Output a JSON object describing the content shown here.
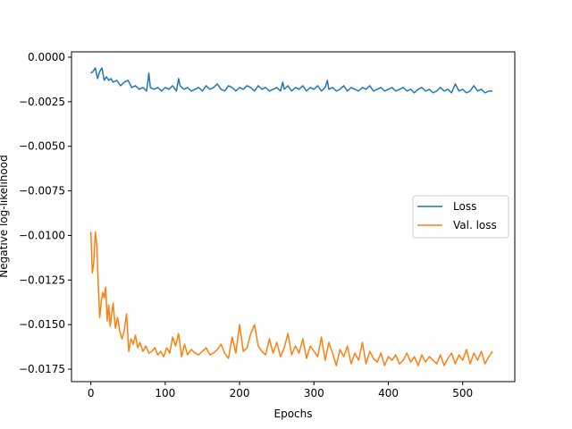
{
  "chart_data": {
    "type": "line",
    "xlabel": "Epochs",
    "ylabel": "Negative log-likelihood",
    "xlim": [
      -26,
      570
    ],
    "ylim": [
      -0.0182,
      0.0003
    ],
    "xticks": [
      0,
      100,
      200,
      300,
      400,
      500
    ],
    "xtick_labels": [
      "0",
      "100",
      "200",
      "300",
      "400",
      "500"
    ],
    "yticks": [
      0.0,
      -0.0025,
      -0.005,
      -0.0075,
      -0.01,
      -0.0125,
      -0.015,
      -0.0175
    ],
    "ytick_labels": [
      "0.0000",
      "−0.0025",
      "−0.0050",
      "−0.0075",
      "−0.0100",
      "−0.0125",
      "−0.0150",
      "−0.0175"
    ],
    "grid": false,
    "legend_position": "center-right",
    "series": [
      {
        "name": "Loss",
        "color": "#1f77b4",
        "x": [
          0,
          3,
          6,
          9,
          12,
          15,
          18,
          21,
          24,
          27,
          30,
          35,
          40,
          45,
          50,
          55,
          60,
          65,
          70,
          75,
          78,
          80,
          85,
          90,
          95,
          100,
          105,
          110,
          115,
          118,
          120,
          125,
          130,
          135,
          140,
          145,
          150,
          155,
          160,
          165,
          170,
          175,
          180,
          185,
          190,
          195,
          200,
          205,
          210,
          215,
          220,
          225,
          230,
          235,
          240,
          245,
          250,
          255,
          258,
          260,
          265,
          270,
          275,
          280,
          285,
          290,
          295,
          300,
          305,
          310,
          315,
          318,
          320,
          325,
          330,
          335,
          340,
          345,
          350,
          355,
          360,
          365,
          370,
          375,
          380,
          385,
          390,
          395,
          400,
          405,
          410,
          415,
          420,
          425,
          430,
          435,
          440,
          445,
          450,
          455,
          460,
          465,
          470,
          475,
          480,
          485,
          490,
          495,
          500,
          505,
          510,
          515,
          520,
          525,
          530,
          535,
          540
        ],
        "y": [
          -0.0009,
          -0.0008,
          -0.0006,
          -0.0012,
          -0.0008,
          -0.0006,
          -0.0013,
          -0.0011,
          -0.0013,
          -0.0012,
          -0.0014,
          -0.0013,
          -0.0016,
          -0.0014,
          -0.0013,
          -0.0017,
          -0.0016,
          -0.0018,
          -0.0017,
          -0.0019,
          -0.0009,
          -0.0017,
          -0.0018,
          -0.0017,
          -0.0019,
          -0.0017,
          -0.0018,
          -0.0016,
          -0.0019,
          -0.0012,
          -0.0016,
          -0.0018,
          -0.0017,
          -0.0019,
          -0.0018,
          -0.0017,
          -0.0019,
          -0.0016,
          -0.0018,
          -0.0017,
          -0.0015,
          -0.0018,
          -0.0019,
          -0.0016,
          -0.0017,
          -0.0019,
          -0.0017,
          -0.0018,
          -0.0016,
          -0.0017,
          -0.0019,
          -0.0016,
          -0.0018,
          -0.0017,
          -0.0019,
          -0.0018,
          -0.0017,
          -0.0019,
          -0.0014,
          -0.0018,
          -0.0016,
          -0.0019,
          -0.0017,
          -0.0018,
          -0.0016,
          -0.0019,
          -0.0017,
          -0.0018,
          -0.0016,
          -0.0019,
          -0.0017,
          -0.0013,
          -0.0018,
          -0.0017,
          -0.0019,
          -0.0018,
          -0.0016,
          -0.0019,
          -0.0017,
          -0.0018,
          -0.0019,
          -0.0017,
          -0.0018,
          -0.0016,
          -0.0019,
          -0.0018,
          -0.0017,
          -0.0019,
          -0.0018,
          -0.0017,
          -0.0019,
          -0.0018,
          -0.0017,
          -0.0019,
          -0.0018,
          -0.002,
          -0.0018,
          -0.0017,
          -0.0019,
          -0.0018,
          -0.002,
          -0.0019,
          -0.0017,
          -0.0019,
          -0.0018,
          -0.002,
          -0.0015,
          -0.0019,
          -0.0018,
          -0.002,
          -0.0019,
          -0.0016,
          -0.0019,
          -0.0018,
          -0.002,
          -0.0019,
          -0.0019
        ]
      },
      {
        "name": "Val. loss",
        "color": "#ff7f0e",
        "x": [
          0,
          2,
          4,
          6,
          8,
          10,
          12,
          14,
          16,
          18,
          20,
          22,
          24,
          26,
          28,
          30,
          33,
          36,
          39,
          42,
          45,
          48,
          51,
          54,
          57,
          60,
          63,
          66,
          70,
          74,
          78,
          82,
          86,
          90,
          94,
          98,
          102,
          106,
          110,
          114,
          118,
          122,
          126,
          130,
          135,
          140,
          145,
          150,
          155,
          160,
          165,
          170,
          175,
          180,
          185,
          190,
          195,
          200,
          205,
          210,
          215,
          220,
          225,
          230,
          235,
          240,
          245,
          250,
          255,
          260,
          265,
          270,
          275,
          280,
          285,
          290,
          295,
          300,
          305,
          310,
          315,
          320,
          325,
          330,
          335,
          340,
          345,
          350,
          355,
          360,
          365,
          370,
          375,
          380,
          385,
          390,
          395,
          400,
          405,
          410,
          415,
          420,
          425,
          430,
          435,
          440,
          445,
          450,
          455,
          460,
          465,
          470,
          475,
          480,
          485,
          490,
          495,
          500,
          505,
          510,
          515,
          520,
          525,
          530,
          535,
          540
        ],
        "y": [
          -0.0098,
          -0.0121,
          -0.0115,
          -0.0098,
          -0.0105,
          -0.0128,
          -0.0146,
          -0.0137,
          -0.0132,
          -0.0135,
          -0.0129,
          -0.0148,
          -0.0139,
          -0.0151,
          -0.0144,
          -0.0138,
          -0.0152,
          -0.0146,
          -0.0154,
          -0.0158,
          -0.0153,
          -0.0144,
          -0.0165,
          -0.0158,
          -0.0161,
          -0.0156,
          -0.0163,
          -0.016,
          -0.0165,
          -0.0162,
          -0.0166,
          -0.0165,
          -0.0163,
          -0.0167,
          -0.0165,
          -0.0168,
          -0.0163,
          -0.0166,
          -0.0157,
          -0.0162,
          -0.0155,
          -0.0168,
          -0.0161,
          -0.0167,
          -0.0164,
          -0.0166,
          -0.0167,
          -0.0165,
          -0.0163,
          -0.0167,
          -0.0166,
          -0.0164,
          -0.0161,
          -0.0166,
          -0.0169,
          -0.0157,
          -0.0166,
          -0.015,
          -0.0165,
          -0.0163,
          -0.0155,
          -0.015,
          -0.0162,
          -0.0165,
          -0.0167,
          -0.0158,
          -0.0166,
          -0.016,
          -0.0168,
          -0.0163,
          -0.0155,
          -0.0167,
          -0.0162,
          -0.0166,
          -0.0158,
          -0.0169,
          -0.0162,
          -0.0165,
          -0.0168,
          -0.0157,
          -0.017,
          -0.016,
          -0.0166,
          -0.0173,
          -0.0164,
          -0.0168,
          -0.0162,
          -0.0172,
          -0.0166,
          -0.017,
          -0.016,
          -0.0172,
          -0.0165,
          -0.0169,
          -0.0171,
          -0.0166,
          -0.0173,
          -0.0168,
          -0.017,
          -0.0167,
          -0.0172,
          -0.017,
          -0.0166,
          -0.0171,
          -0.0168,
          -0.0173,
          -0.0167,
          -0.0171,
          -0.0168,
          -0.017,
          -0.0172,
          -0.0167,
          -0.0173,
          -0.0169,
          -0.0166,
          -0.0172,
          -0.0167,
          -0.017,
          -0.0164,
          -0.0172,
          -0.0166,
          -0.017,
          -0.0165,
          -0.0172,
          -0.0168,
          -0.0165
        ]
      }
    ]
  }
}
